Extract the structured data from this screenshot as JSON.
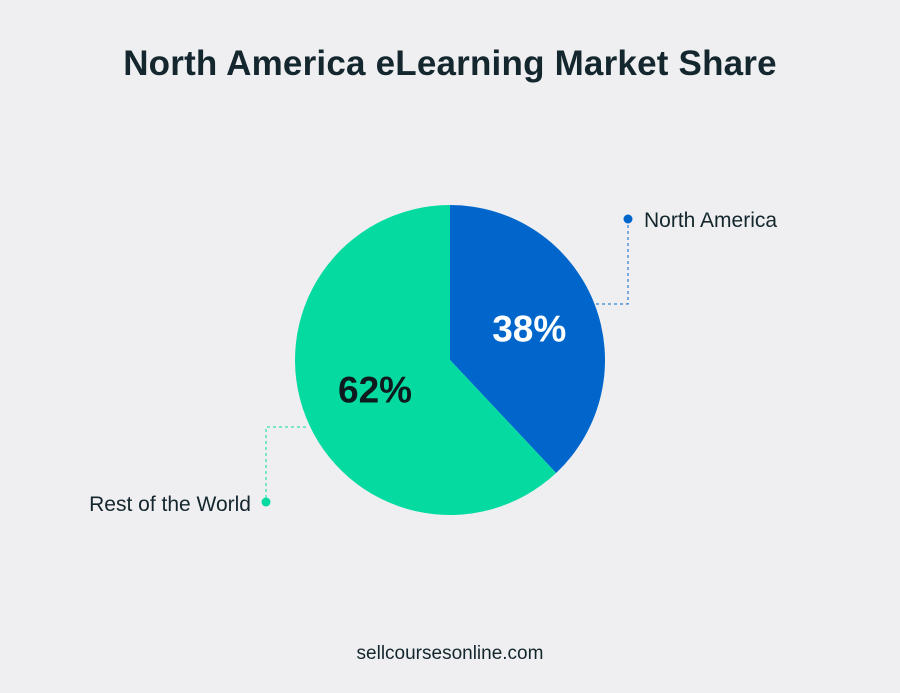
{
  "title": "North America eLearning Market Share",
  "footer": "sellcoursesonline.com",
  "colors": {
    "background": "#efeff1",
    "north_america": "#0066cc",
    "rest_of_world": "#05dba0",
    "title_text": "#14272e"
  },
  "chart_data": {
    "type": "pie",
    "title": "North America eLearning Market Share",
    "unit": "%",
    "slices": [
      {
        "label": "North America",
        "value": 38,
        "display": "38%",
        "color": "#0066cc",
        "label_color": "#ffffff"
      },
      {
        "label": "Rest of the World",
        "value": 62,
        "display": "62%",
        "color": "#05dba0",
        "label_color": "#0d1b1e"
      }
    ]
  }
}
